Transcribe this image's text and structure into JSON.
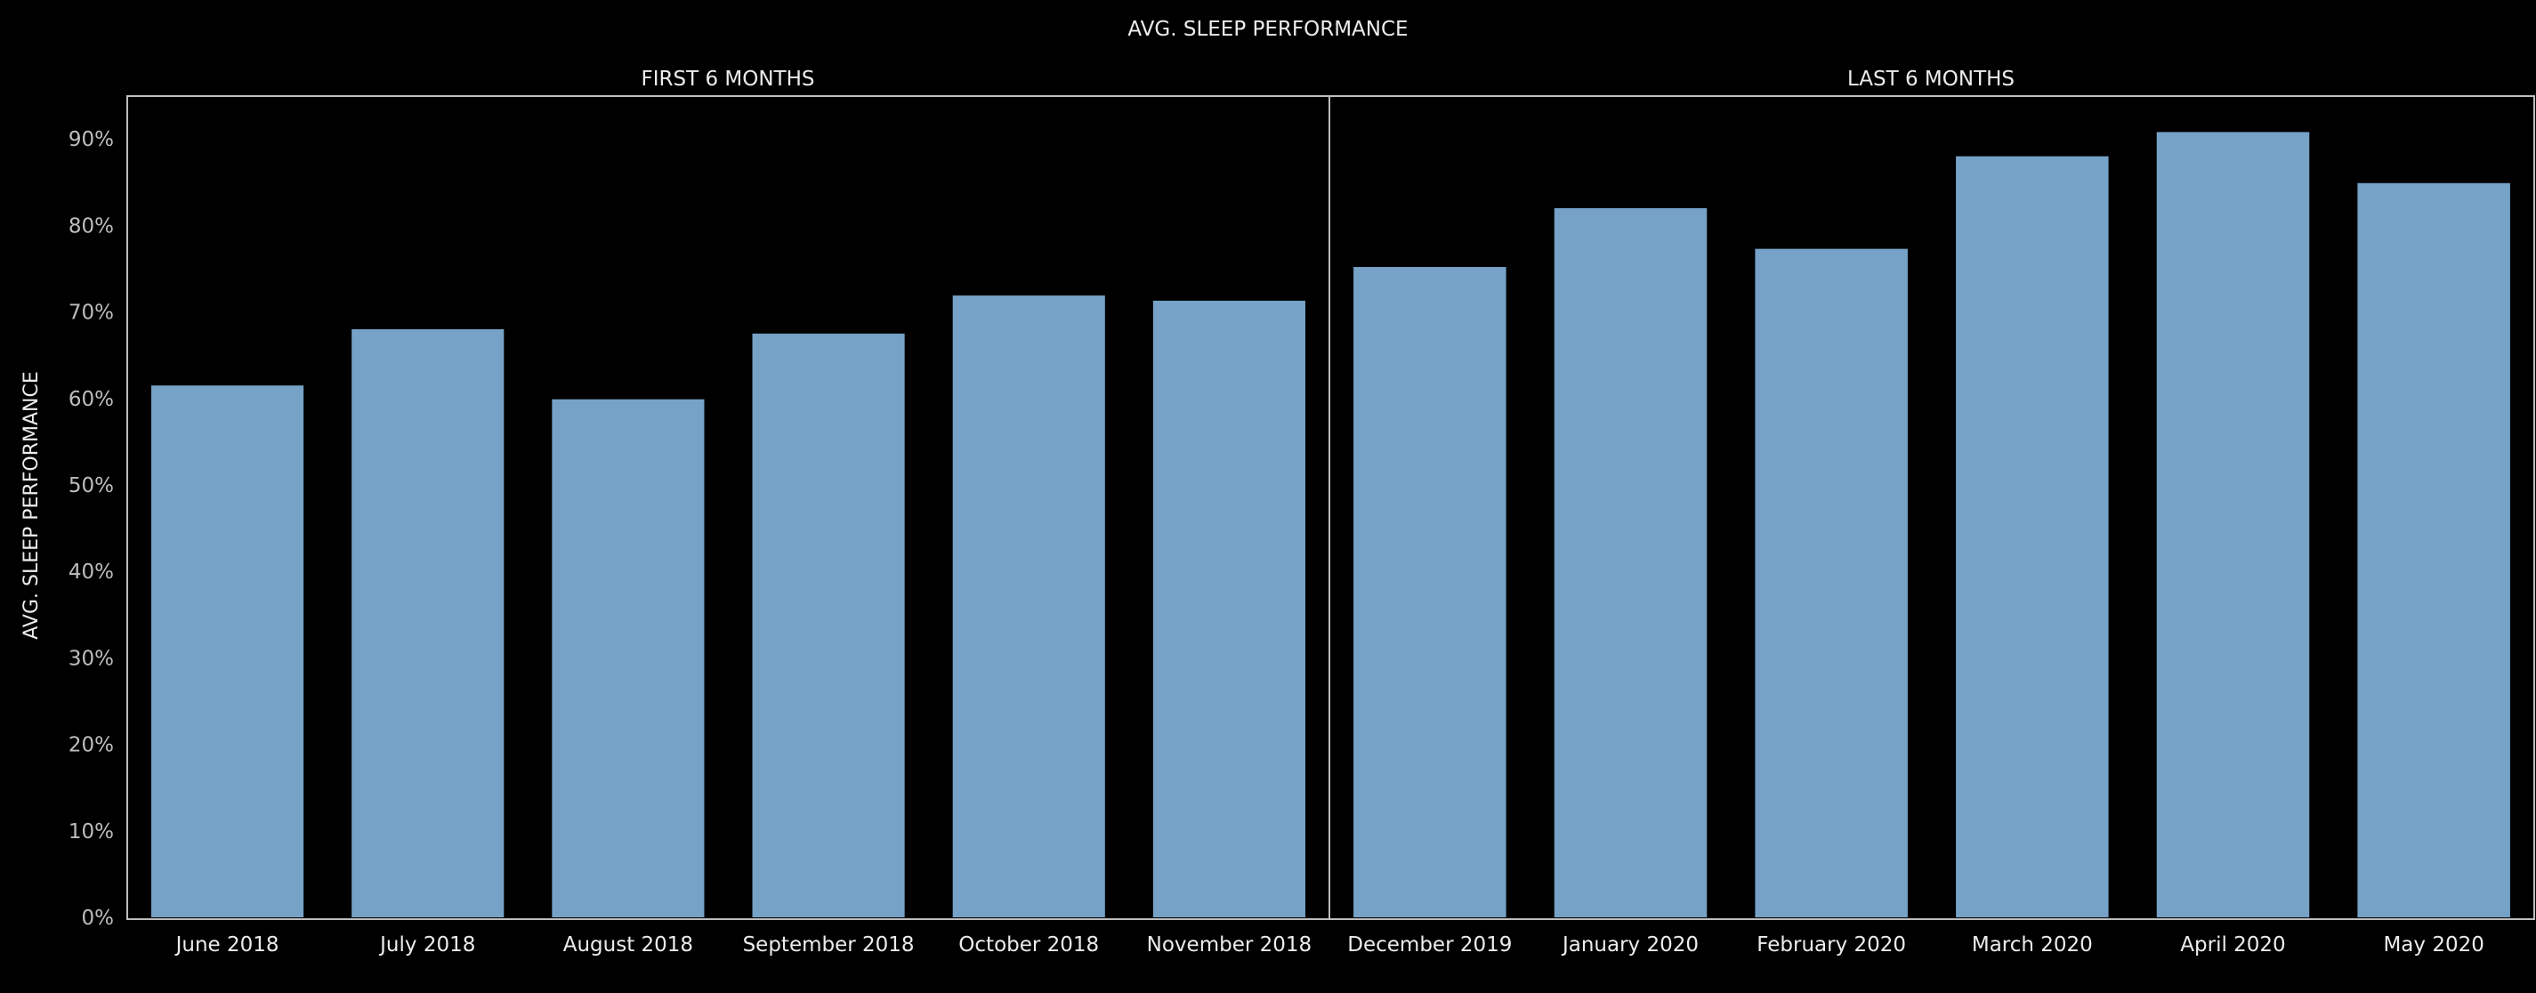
{
  "chart_data": {
    "type": "bar",
    "title": "AVG. SLEEP PERFORMANCE",
    "ylabel": "AVG. SLEEP PERFORMANCE",
    "xlabel": "",
    "ylim": [
      0,
      95
    ],
    "yticks": [
      "0%",
      "10%",
      "20%",
      "30%",
      "40%",
      "50%",
      "60%",
      "70%",
      "80%",
      "90%"
    ],
    "grid": false,
    "bar_color": "#76a2c7",
    "background": "#000000",
    "panels": [
      {
        "label": "FIRST 6 MONTHS",
        "categories": [
          "June 2018",
          "July 2018",
          "August 2018",
          "September 2018",
          "October 2018",
          "November 2018"
        ],
        "values": [
          61.5,
          68.0,
          59.9,
          67.5,
          71.9,
          71.3
        ]
      },
      {
        "label": "LAST 6 MONTHS",
        "categories": [
          "December 2019",
          "January 2020",
          "February 2020",
          "March 2020",
          "April 2020",
          "May 2020"
        ],
        "values": [
          75.2,
          82.0,
          77.3,
          88.0,
          90.8,
          84.9
        ]
      }
    ]
  }
}
